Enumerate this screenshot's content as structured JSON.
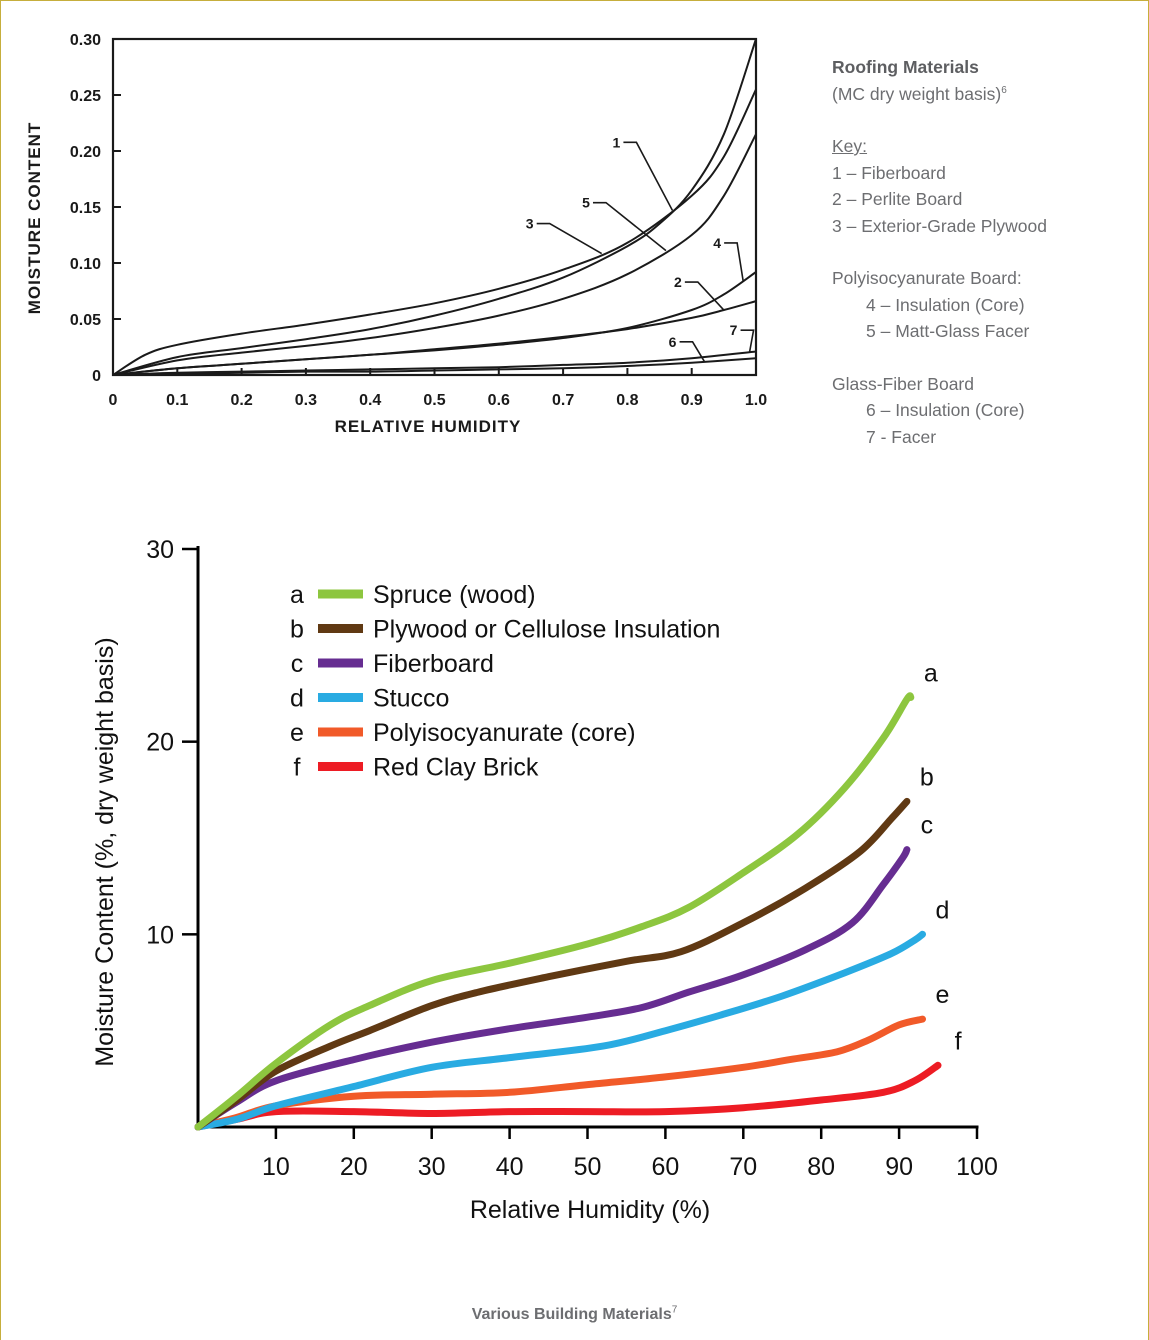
{
  "top_chart_key": {
    "title": "Roofing Materials",
    "subtitle": "(MC dry weight basis)",
    "subtitle_sup": "6",
    "key_heading": "Key:",
    "items_1": [
      "1 – Fiberboard",
      "2 – Perlite Board",
      "3 – Exterior-Grade Plywood"
    ],
    "group_2_title": "Polyisocyanurate Board:",
    "items_2": [
      "4 – Insulation (Core)",
      "5 – Matt-Glass Facer"
    ],
    "group_3_title": "Glass-Fiber Board",
    "items_3": [
      "6 – Insulation (Core)",
      "7 - Facer"
    ]
  },
  "bottom_caption": {
    "text": "Various Building Materials",
    "sup": "7"
  },
  "colors": {
    "frame": "#c6ae3c",
    "top_ink": "#1a1a1a",
    "spruce": "#8dc63f",
    "plywood": "#603913",
    "fiberboard": "#662d91",
    "stucco": "#29abe2",
    "polyiso": "#f15a29",
    "brick": "#ed1c24"
  },
  "chart_data": [
    {
      "type": "line",
      "title": "",
      "xlabel": "RELATIVE HUMIDITY",
      "ylabel": "MOISTURE CONTENT",
      "xlim": [
        0,
        1.0
      ],
      "ylim": [
        0,
        0.3
      ],
      "xticks": [
        "0",
        "0.1",
        "0.2",
        "0.3",
        "0.4",
        "0.5",
        "0.6",
        "0.7",
        "0.8",
        "0.9",
        "1.0"
      ],
      "yticks": [
        "0",
        "0.05",
        "0.10",
        "0.15",
        "0.20",
        "0.25",
        "0.30"
      ],
      "series": [
        {
          "name": "1",
          "x": [
            0,
            0.1,
            0.2,
            0.3,
            0.4,
            0.5,
            0.6,
            0.7,
            0.8,
            0.85,
            0.9,
            0.95,
            1.0
          ],
          "y": [
            0,
            0.016,
            0.024,
            0.032,
            0.041,
            0.053,
            0.068,
            0.087,
            0.115,
            0.135,
            0.165,
            0.215,
            0.3
          ]
        },
        {
          "name": "2",
          "x": [
            0,
            0.1,
            0.2,
            0.3,
            0.4,
            0.5,
            0.6,
            0.7,
            0.8,
            0.9,
            0.95,
            1.0
          ],
          "y": [
            0,
            0.006,
            0.01,
            0.014,
            0.018,
            0.023,
            0.028,
            0.034,
            0.041,
            0.051,
            0.058,
            0.066
          ]
        },
        {
          "name": "3",
          "x": [
            0,
            0.05,
            0.1,
            0.2,
            0.3,
            0.4,
            0.5,
            0.6,
            0.7,
            0.8,
            0.9,
            0.95,
            1.0
          ],
          "y": [
            0,
            0.018,
            0.027,
            0.037,
            0.045,
            0.054,
            0.064,
            0.077,
            0.094,
            0.118,
            0.16,
            0.195,
            0.255
          ]
        },
        {
          "name": "4",
          "x": [
            0,
            0.1,
            0.2,
            0.3,
            0.4,
            0.5,
            0.6,
            0.7,
            0.8,
            0.9,
            0.95,
            1.0
          ],
          "y": [
            0,
            0.006,
            0.01,
            0.014,
            0.018,
            0.022,
            0.027,
            0.033,
            0.042,
            0.058,
            0.072,
            0.092
          ]
        },
        {
          "name": "5",
          "x": [
            0,
            0.1,
            0.2,
            0.3,
            0.4,
            0.5,
            0.6,
            0.7,
            0.8,
            0.9,
            0.95,
            1.0
          ],
          "y": [
            0,
            0.013,
            0.02,
            0.026,
            0.033,
            0.042,
            0.053,
            0.068,
            0.09,
            0.125,
            0.16,
            0.215
          ]
        },
        {
          "name": "6",
          "x": [
            0,
            0.1,
            0.2,
            0.3,
            0.4,
            0.5,
            0.6,
            0.7,
            0.8,
            0.9,
            1.0
          ],
          "y": [
            0,
            0.001,
            0.002,
            0.003,
            0.003,
            0.004,
            0.005,
            0.006,
            0.008,
            0.011,
            0.015
          ]
        },
        {
          "name": "7",
          "x": [
            0,
            0.1,
            0.2,
            0.3,
            0.4,
            0.5,
            0.6,
            0.7,
            0.8,
            0.9,
            1.0
          ],
          "y": [
            0,
            0.002,
            0.003,
            0.004,
            0.005,
            0.006,
            0.007,
            0.009,
            0.011,
            0.015,
            0.021
          ]
        }
      ]
    },
    {
      "type": "line",
      "title": "",
      "xlabel": "Relative Humidity (%)",
      "ylabel": "Moisture Content (%, dry weight basis)",
      "xlim": [
        0,
        100
      ],
      "ylim": [
        0,
        30
      ],
      "xticks": [
        10,
        20,
        30,
        40,
        50,
        60,
        70,
        80,
        90,
        100
      ],
      "yticks": [
        10,
        20,
        30
      ],
      "legend": "top-left",
      "series": [
        {
          "id": "a",
          "name": "Spruce (wood)",
          "color": "#8dc63f",
          "x": [
            0,
            5,
            10,
            17,
            22,
            30,
            40,
            50,
            57,
            63,
            70,
            77,
            83,
            88,
            91,
            91.5
          ],
          "y": [
            0,
            1.6,
            3.3,
            5.3,
            6.3,
            7.6,
            8.5,
            9.5,
            10.4,
            11.4,
            13.2,
            15.2,
            17.6,
            20.2,
            22.2,
            22.3
          ]
        },
        {
          "id": "b",
          "name": "Plywood or Cellulose Insulation",
          "color": "#603913",
          "x": [
            0,
            5,
            10,
            17,
            22,
            30,
            36,
            45,
            55,
            62,
            70,
            78,
            85,
            89,
            91
          ],
          "y": [
            0,
            1.4,
            2.9,
            4.2,
            5.0,
            6.3,
            7.0,
            7.8,
            8.6,
            9.1,
            10.6,
            12.4,
            14.3,
            16.0,
            16.9
          ]
        },
        {
          "id": "c",
          "name": "Fiberboard",
          "color": "#662d91",
          "x": [
            0,
            5,
            10,
            20,
            30,
            40,
            50,
            57,
            63,
            70,
            78,
            84,
            88,
            90.5,
            91
          ],
          "y": [
            0,
            1.3,
            2.4,
            3.5,
            4.4,
            5.1,
            5.7,
            6.2,
            7.0,
            7.9,
            9.2,
            10.6,
            12.6,
            14.0,
            14.4
          ]
        },
        {
          "id": "d",
          "name": "Stucco",
          "color": "#29abe2",
          "x": [
            0,
            5,
            10,
            20,
            30,
            40,
            52,
            60,
            67,
            75,
            83,
            89,
            92,
            93
          ],
          "y": [
            0,
            0.4,
            1.1,
            2.1,
            3.1,
            3.6,
            4.2,
            5.0,
            5.8,
            6.8,
            8.0,
            9.0,
            9.7,
            10.0
          ]
        },
        {
          "id": "e",
          "name": "Polyisocyanurate (core)",
          "color": "#f15a29",
          "x": [
            0,
            5,
            10,
            20,
            30,
            40,
            50,
            60,
            70,
            76,
            82,
            86,
            90,
            93
          ],
          "y": [
            0,
            0.5,
            1.1,
            1.6,
            1.7,
            1.8,
            2.2,
            2.6,
            3.1,
            3.5,
            3.9,
            4.5,
            5.3,
            5.6
          ]
        },
        {
          "id": "f",
          "name": "Red Clay Brick",
          "color": "#ed1c24",
          "x": [
            0,
            5,
            10,
            20,
            30,
            40,
            50,
            60,
            70,
            80,
            88,
            92,
            95
          ],
          "y": [
            0,
            0.4,
            0.8,
            0.8,
            0.7,
            0.8,
            0.8,
            0.8,
            1.0,
            1.4,
            1.8,
            2.4,
            3.2
          ]
        }
      ]
    }
  ]
}
